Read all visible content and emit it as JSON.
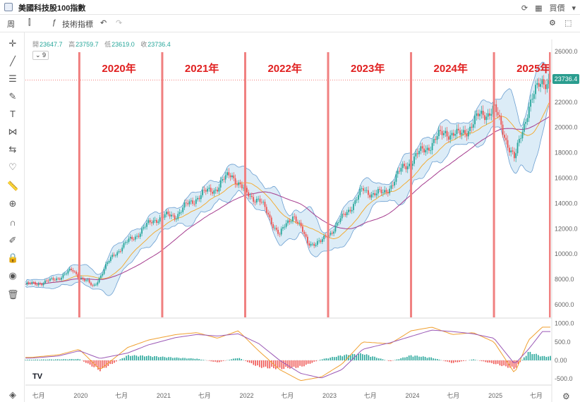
{
  "window": {
    "title": "美國科技股100指數",
    "right_label": "買價"
  },
  "toolbar": {
    "interval": "周",
    "indicator_btn": "技術指標"
  },
  "ohlc": {
    "open_key": "開",
    "open": "23647.7",
    "high_key": "高",
    "high": "23759.7",
    "low_key": "低",
    "low": "23619.0",
    "close_key": "收",
    "close": "23736.4"
  },
  "indicator_badge": "9",
  "last_price_tag": "23736.4",
  "logo_text": "TV",
  "colors": {
    "up": "#26a69a",
    "down": "#ef5350",
    "bb_fill": "#d6e9f6",
    "bb_line": "#6b9fd1",
    "ma_orange": "#f5a623",
    "ma_purple": "#a53c8e",
    "year_line": "#f08080",
    "macd": "#f0a030",
    "signal": "#9b59b6"
  },
  "chart_data": {
    "type": "line",
    "main": {
      "y_ticks": [
        "26000.0",
        "24000.0",
        "22000.0",
        "20000.0",
        "18000.0",
        "16000.0",
        "14000.0",
        "12000.0",
        "10000.0",
        "8000.0",
        "6000.0"
      ],
      "ylim": [
        5000,
        26500
      ],
      "x": [
        "2019-06",
        "2019-09",
        "2019-12",
        "2020-03",
        "2020-06",
        "2020-09",
        "2020-12",
        "2021-03",
        "2021-06",
        "2021-09",
        "2021-11",
        "2022-01",
        "2022-03",
        "2022-06",
        "2022-08",
        "2022-10",
        "2022-12",
        "2023-03",
        "2023-06",
        "2023-09",
        "2023-12",
        "2024-03",
        "2024-06",
        "2024-08",
        "2024-11",
        "2025-01",
        "2025-04",
        "2025-06",
        "2025-08"
      ],
      "close": [
        7600,
        7900,
        8700,
        7400,
        10000,
        11400,
        12800,
        13100,
        14500,
        15300,
        16400,
        14800,
        14300,
        11500,
        13200,
        10900,
        10900,
        12800,
        15000,
        14700,
        16900,
        18300,
        19700,
        19300,
        20900,
        21500,
        17400,
        21700,
        23736
      ]
    },
    "year_annotations": [
      "2020年",
      "2021年",
      "2022年",
      "2023年",
      "2024年",
      "2025年"
    ],
    "x_axis_labels": [
      "七月",
      "2020",
      "七月",
      "2021",
      "七月",
      "2022",
      "七月",
      "2023",
      "七月",
      "2024",
      "七月",
      "2025",
      "七月"
    ],
    "macd": {
      "y_ticks": [
        "1000.0",
        "500.0",
        "0.00",
        "-500.0"
      ],
      "ylim": [
        -650,
        1050
      ],
      "x": [
        "2019-06",
        "2019-10",
        "2020-01",
        "2020-04",
        "2020-08",
        "2020-11",
        "2021-03",
        "2021-06",
        "2021-09",
        "2021-12",
        "2022-03",
        "2022-06",
        "2022-09",
        "2022-12",
        "2023-03",
        "2023-06",
        "2023-10",
        "2024-01",
        "2024-04",
        "2024-07",
        "2024-10",
        "2025-01",
        "2025-04",
        "2025-06",
        "2025-08"
      ],
      "macd": [
        80,
        150,
        300,
        -250,
        350,
        550,
        700,
        750,
        600,
        800,
        250,
        -250,
        -550,
        -450,
        -100,
        500,
        450,
        800,
        900,
        700,
        750,
        500,
        -350,
        550,
        900
      ],
      "signal": [
        60,
        120,
        260,
        50,
        200,
        420,
        620,
        700,
        660,
        720,
        450,
        0,
        -350,
        -480,
        -250,
        300,
        480,
        650,
        820,
        780,
        720,
        600,
        -100,
        300,
        780
      ],
      "hist": [
        20,
        30,
        40,
        -300,
        150,
        130,
        80,
        50,
        -60,
        80,
        -200,
        -250,
        -200,
        30,
        150,
        200,
        -30,
        150,
        80,
        -80,
        30,
        -100,
        -250,
        250,
        120
      ]
    }
  }
}
